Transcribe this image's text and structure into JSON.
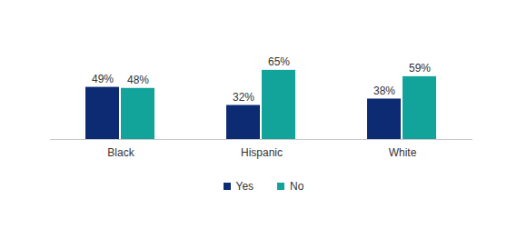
{
  "chart_data": {
    "type": "bar",
    "categories": [
      "Black",
      "Hispanic",
      "White"
    ],
    "series": [
      {
        "name": "Yes",
        "color": "#0c2b72",
        "values": [
          49,
          32,
          38
        ],
        "value_labels": [
          "49%",
          "32%",
          "38%"
        ]
      },
      {
        "name": "No",
        "color": "#12a39a",
        "values": [
          48,
          65,
          59
        ],
        "value_labels": [
          "48%",
          "65%",
          "59%"
        ]
      }
    ],
    "ylim": [
      0,
      70
    ],
    "data_labels": true,
    "tick_labels": "x",
    "legend": "bottom",
    "grid": false
  }
}
